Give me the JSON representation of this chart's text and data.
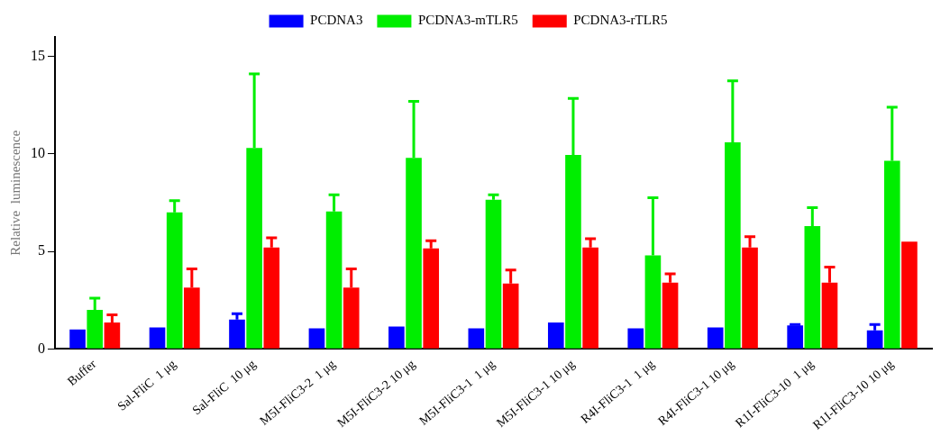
{
  "chart_data": {
    "type": "bar",
    "ylabel": "Relative  luminescence",
    "categories": [
      "Buffer",
      "Sal-FliC  1 μg",
      "Sal-FliC  10 μg",
      "M5I-FliC3-2  1 μg",
      "M5I-FliC3-2 10 μg",
      "M5I-FliC3-1  1 μg",
      "M5I-FliC3-1 10 μg",
      "R4I-FliC3-1  1 μg",
      "R4I-FliC3-1 10 μg",
      "R1I-FliC3-10  1 μg",
      "R1I-FliC3-10 10 μg"
    ],
    "series": [
      {
        "name": "PCDNA3",
        "color": "#0000ff",
        "values": [
          1.0,
          1.1,
          1.5,
          1.05,
          1.15,
          1.05,
          1.35,
          1.05,
          1.1,
          1.2,
          0.95
        ],
        "errors": [
          null,
          null,
          [
            1.5,
            1.8
          ],
          null,
          null,
          null,
          null,
          null,
          null,
          [
            1.2,
            1.25
          ],
          [
            0.95,
            1.25
          ]
        ]
      },
      {
        "name": "PCDNA3-mTLR5",
        "color": "#00ee00",
        "values": [
          2.0,
          7.0,
          10.3,
          7.05,
          9.8,
          7.65,
          9.95,
          4.8,
          10.6,
          6.3,
          9.65
        ],
        "errors": [
          [
            2.0,
            2.6
          ],
          [
            7.0,
            7.6
          ],
          [
            10.3,
            14.1
          ],
          [
            7.05,
            7.9
          ],
          [
            9.8,
            12.7
          ],
          [
            7.65,
            7.9
          ],
          [
            9.95,
            12.85
          ],
          [
            4.8,
            7.75
          ],
          [
            10.6,
            13.75
          ],
          [
            6.3,
            7.25
          ],
          [
            9.65,
            12.4
          ]
        ]
      },
      {
        "name": "PCDNA3-rTLR5",
        "color": "#ff0000",
        "values": [
          1.35,
          3.15,
          5.2,
          3.15,
          5.15,
          3.35,
          5.2,
          3.4,
          5.2,
          3.4,
          5.5
        ],
        "errors": [
          [
            1.35,
            1.75
          ],
          [
            3.15,
            4.1
          ],
          [
            5.2,
            5.7
          ],
          [
            3.15,
            4.1
          ],
          [
            5.15,
            5.55
          ],
          [
            3.35,
            4.05
          ],
          [
            5.2,
            5.65
          ],
          [
            3.4,
            3.85
          ],
          [
            5.2,
            5.75
          ],
          [
            3.4,
            4.2
          ],
          null
        ]
      }
    ],
    "ylim": [
      0,
      16
    ],
    "yticks": [
      0,
      5,
      10,
      15
    ],
    "grid": false,
    "legend": "top"
  }
}
